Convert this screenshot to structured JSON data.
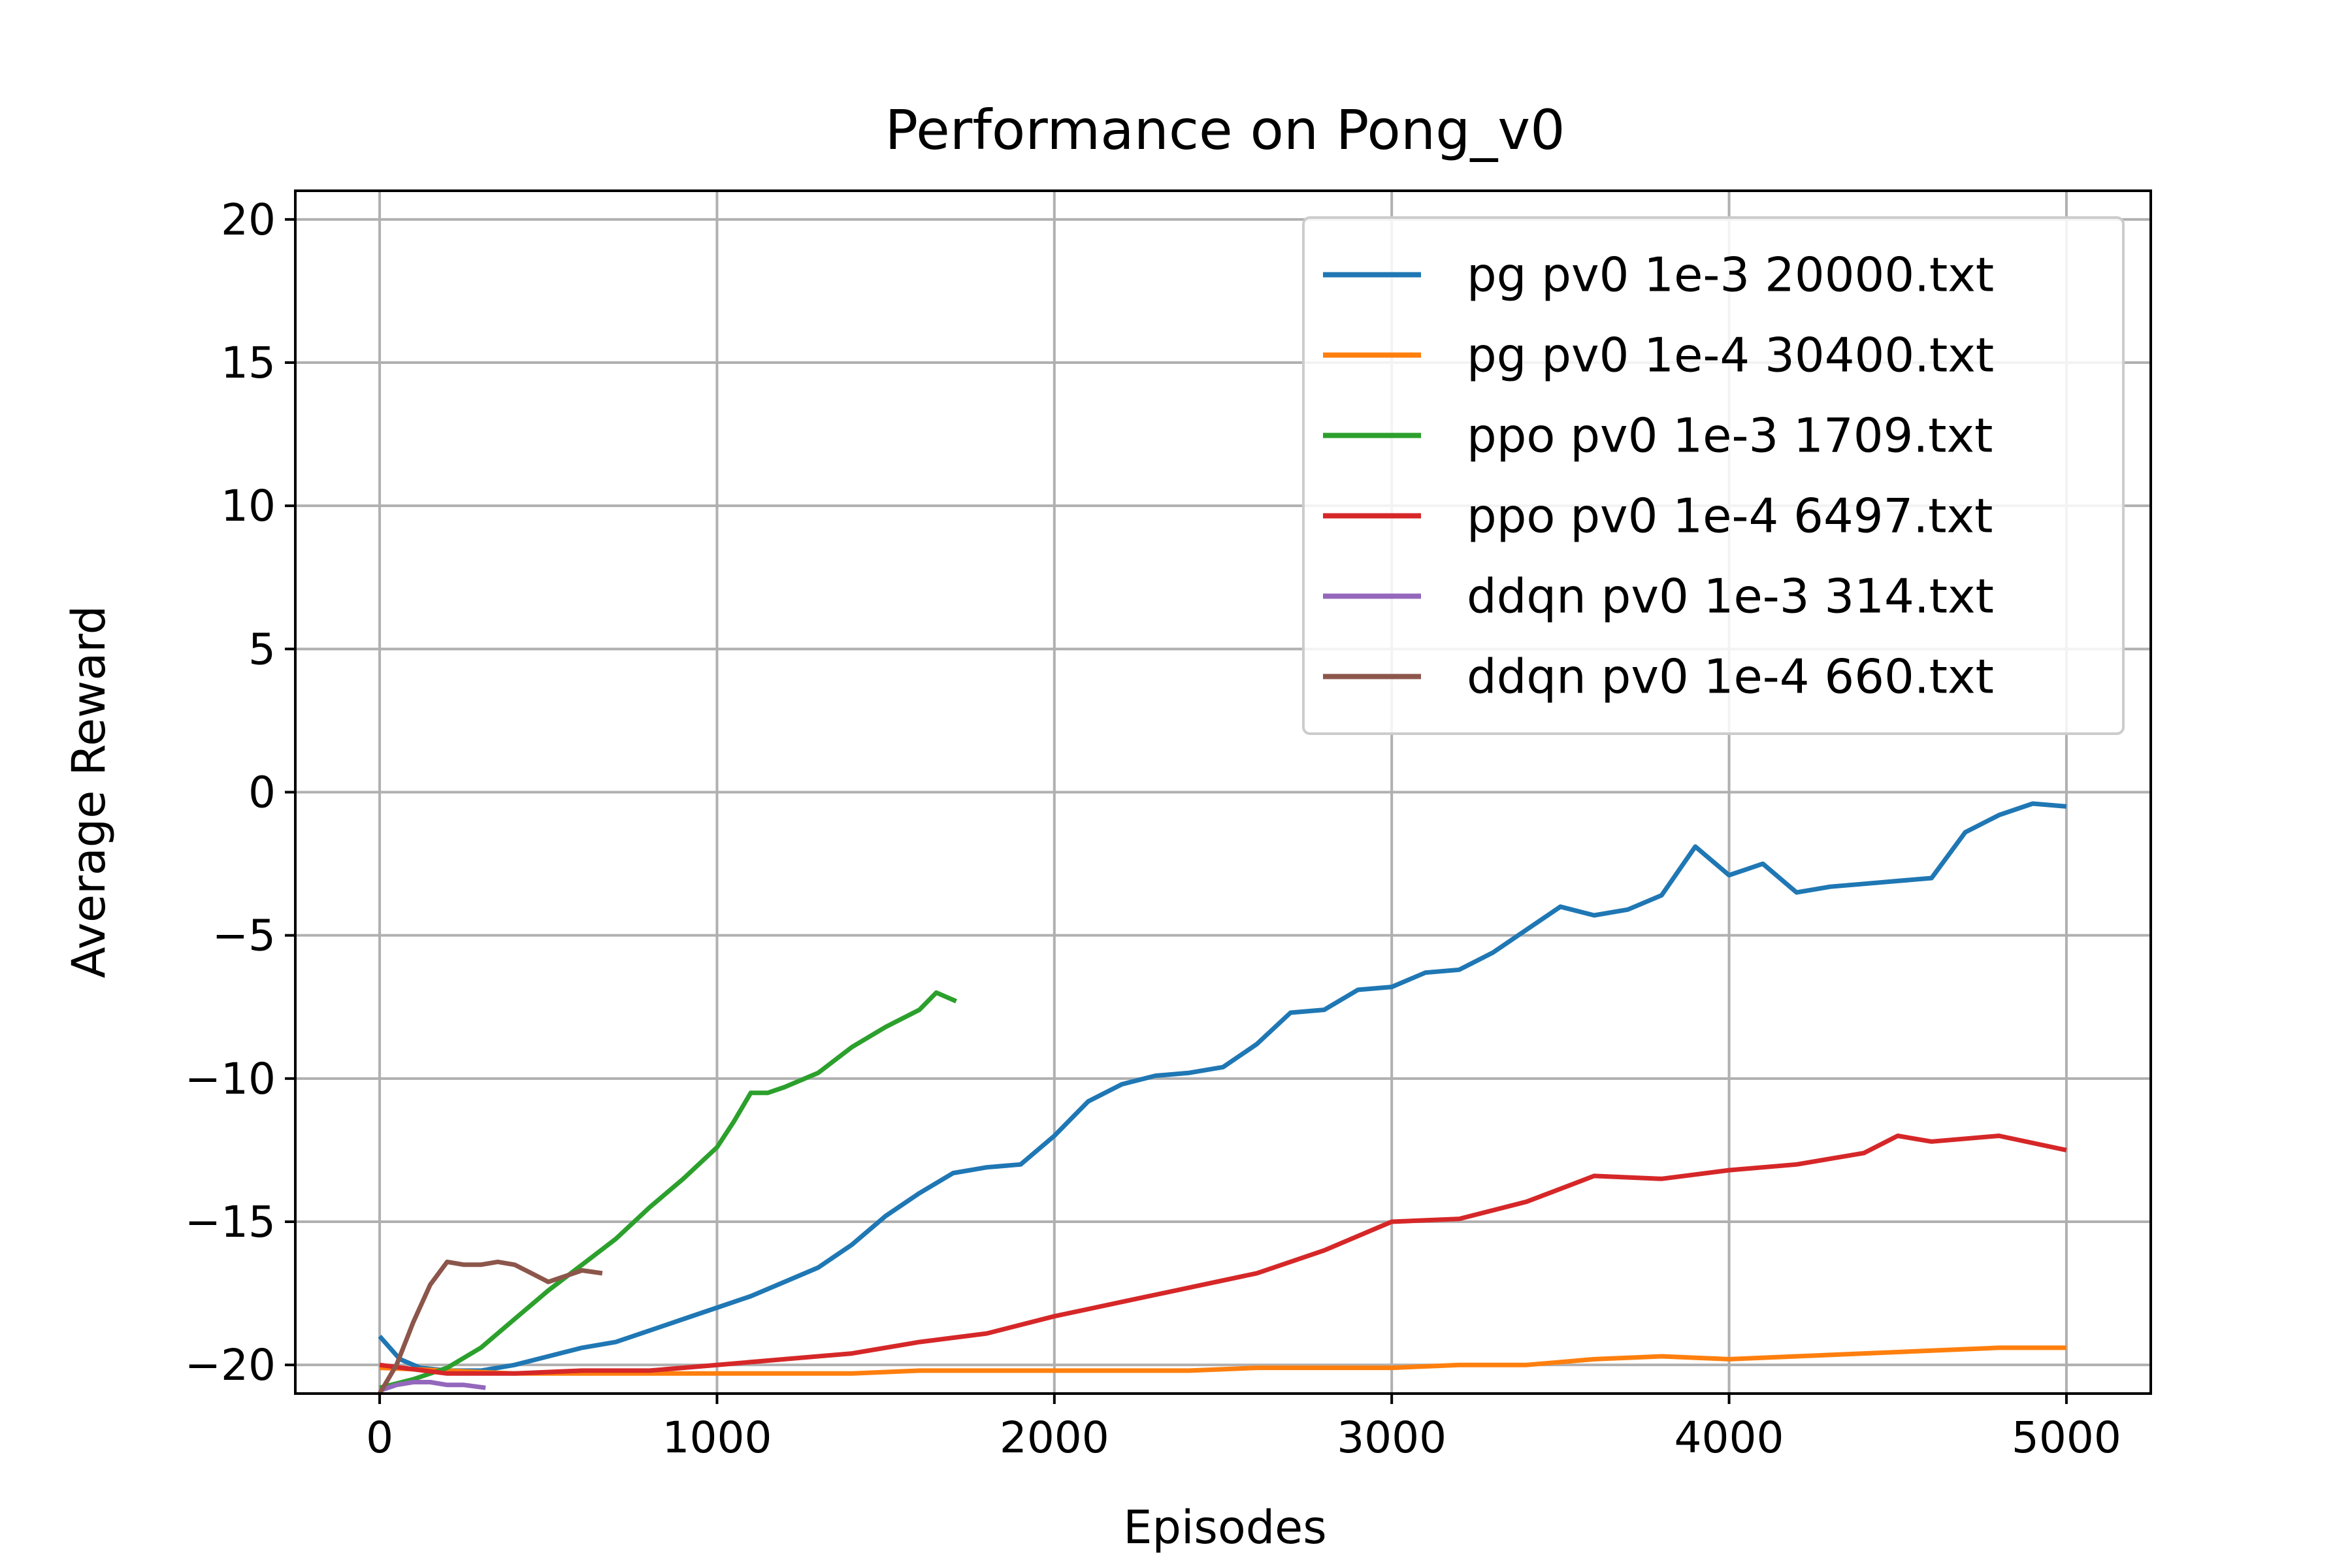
{
  "chart_data": {
    "type": "line",
    "title": "Performance on Pong_v0",
    "xlabel": "Episodes",
    "ylabel": "Average Reward",
    "xlim": [
      -250,
      5250
    ],
    "ylim": [
      -21,
      21
    ],
    "xticks": [
      0,
      1000,
      2000,
      3000,
      4000,
      5000
    ],
    "xtick_labels": [
      "0",
      "1000",
      "2000",
      "3000",
      "4000",
      "5000"
    ],
    "yticks": [
      -20,
      -15,
      -10,
      -5,
      0,
      5,
      10,
      15,
      20
    ],
    "ytick_labels": [
      "−20",
      "−15",
      "−10",
      "−5",
      "0",
      "5",
      "10",
      "15",
      "20"
    ],
    "grid": true,
    "legend_position": "top-right",
    "series": [
      {
        "name": "pg pv0 1e-3 20000.txt",
        "color": "#1f77b4",
        "x": [
          0,
          60,
          120,
          200,
          300,
          400,
          500,
          600,
          700,
          800,
          900,
          1000,
          1100,
          1200,
          1300,
          1400,
          1500,
          1600,
          1700,
          1800,
          1900,
          2000,
          2100,
          2200,
          2300,
          2400,
          2500,
          2600,
          2700,
          2800,
          2900,
          3000,
          3100,
          3200,
          3300,
          3400,
          3500,
          3600,
          3700,
          3800,
          3900,
          4000,
          4100,
          4200,
          4300,
          4400,
          4500,
          4600,
          4700,
          4800,
          4900,
          5000
        ],
        "y": [
          -19.0,
          -19.8,
          -20.1,
          -20.2,
          -20.2,
          -20.0,
          -19.7,
          -19.4,
          -19.2,
          -18.8,
          -18.4,
          -18.0,
          -17.6,
          -17.1,
          -16.6,
          -15.8,
          -14.8,
          -14.0,
          -13.3,
          -13.1,
          -13.0,
          -12.0,
          -10.8,
          -10.2,
          -9.9,
          -9.8,
          -9.6,
          -8.8,
          -7.7,
          -7.6,
          -6.9,
          -6.8,
          -6.3,
          -6.2,
          -5.6,
          -4.8,
          -4.0,
          -4.3,
          -4.1,
          -3.6,
          -1.9,
          -2.9,
          -2.5,
          -3.5,
          -3.3,
          -3.2,
          -3.1,
          -3.0,
          -1.4,
          -0.8,
          -0.4,
          -0.5
        ]
      },
      {
        "name": "pg pv0 1e-4 30400.txt",
        "color": "#ff7f0e",
        "x": [
          0,
          200,
          400,
          600,
          800,
          1000,
          1200,
          1400,
          1600,
          1800,
          2000,
          2200,
          2400,
          2600,
          2800,
          3000,
          3200,
          3400,
          3600,
          3800,
          4000,
          4200,
          4400,
          4600,
          4800,
          5000
        ],
        "y": [
          -20.1,
          -20.2,
          -20.3,
          -20.3,
          -20.3,
          -20.3,
          -20.3,
          -20.3,
          -20.2,
          -20.2,
          -20.2,
          -20.2,
          -20.2,
          -20.1,
          -20.1,
          -20.1,
          -20.0,
          -20.0,
          -19.8,
          -19.7,
          -19.8,
          -19.7,
          -19.6,
          -19.5,
          -19.4,
          -19.4
        ]
      },
      {
        "name": "ppo pv0 1e-3 1709.txt",
        "color": "#2ca02c",
        "x": [
          0,
          100,
          200,
          300,
          400,
          500,
          600,
          700,
          800,
          900,
          1000,
          1050,
          1100,
          1150,
          1200,
          1300,
          1400,
          1500,
          1600,
          1650,
          1709
        ],
        "y": [
          -20.8,
          -20.5,
          -20.1,
          -19.4,
          -18.4,
          -17.4,
          -16.5,
          -15.6,
          -14.5,
          -13.5,
          -12.4,
          -11.5,
          -10.5,
          -10.5,
          -10.3,
          -9.8,
          -8.9,
          -8.2,
          -7.6,
          -7.0,
          -7.3
        ]
      },
      {
        "name": "ppo pv0 1e-4 6497.txt",
        "color": "#d62728",
        "x": [
          0,
          200,
          400,
          600,
          800,
          1000,
          1200,
          1400,
          1600,
          1800,
          2000,
          2200,
          2400,
          2600,
          2800,
          3000,
          3200,
          3400,
          3600,
          3800,
          4000,
          4200,
          4400,
          4500,
          4600,
          4800,
          5000
        ],
        "y": [
          -20.0,
          -20.3,
          -20.3,
          -20.2,
          -20.2,
          -20.0,
          -19.8,
          -19.6,
          -19.2,
          -18.9,
          -18.3,
          -17.8,
          -17.3,
          -16.8,
          -16.0,
          -15.0,
          -14.9,
          -14.3,
          -13.4,
          -13.5,
          -13.2,
          -13.0,
          -12.6,
          -12.0,
          -12.2,
          -12.0,
          -12.5
        ]
      },
      {
        "name": "ddqn pv0 1e-3 314.txt",
        "color": "#9467bd",
        "x": [
          0,
          50,
          100,
          150,
          200,
          250,
          314
        ],
        "y": [
          -20.9,
          -20.7,
          -20.6,
          -20.6,
          -20.7,
          -20.7,
          -20.8
        ]
      },
      {
        "name": "ddqn pv0 1e-4 660.txt",
        "color": "#8c564b",
        "x": [
          0,
          50,
          100,
          150,
          200,
          250,
          300,
          350,
          400,
          450,
          500,
          550,
          600,
          660
        ],
        "y": [
          -21.0,
          -20.0,
          -18.5,
          -17.2,
          -16.4,
          -16.5,
          -16.5,
          -16.4,
          -16.5,
          -16.8,
          -17.1,
          -16.9,
          -16.7,
          -16.8
        ]
      }
    ]
  }
}
